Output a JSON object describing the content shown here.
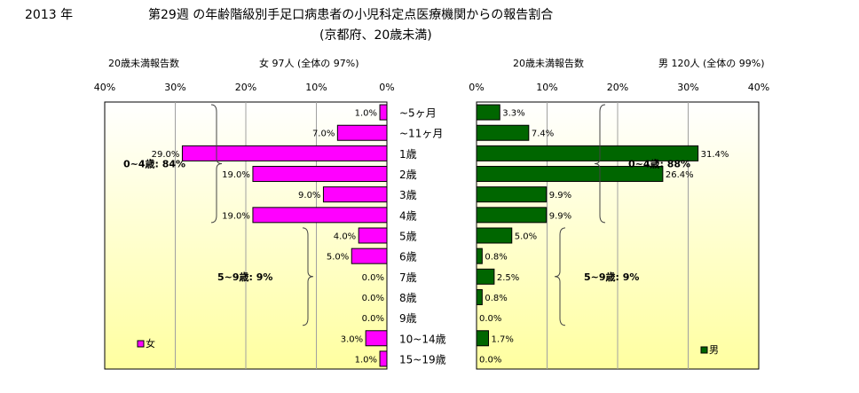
{
  "header": {
    "year": "2013 年",
    "title_line1": "第29週 の年齢階級別手足口病患者の小児科定点医療機関からの報告割合",
    "title_line2": "(京都府、20歳未満)"
  },
  "colors": {
    "female": "#ff00ff",
    "male": "#006600",
    "plot_bg_top": "#ffffff",
    "plot_bg_bottom": "#ffffa0"
  },
  "chart_data": [
    {
      "type": "bar",
      "orientation": "horizontal",
      "direction": "right-to-left",
      "subtitle": "20歳未満報告数",
      "total_label": "女 97人 (全体の 97%)",
      "legend": "女",
      "legend_position": "bottom-left",
      "xlim": [
        0,
        40
      ],
      "x_ticks": [
        "40%",
        "30%",
        "20%",
        "10%",
        "0%"
      ],
      "categories": [
        "~5ヶ月",
        "~11ヶ月",
        "1歳",
        "2歳",
        "3歳",
        "4歳",
        "5歳",
        "6歳",
        "7歳",
        "8歳",
        "9歳",
        "10~14歳",
        "15~19歳"
      ],
      "values": [
        1.0,
        7.0,
        29.0,
        19.0,
        9.0,
        19.0,
        4.0,
        5.0,
        0.0,
        0.0,
        0.0,
        3.0,
        1.0
      ],
      "value_labels": [
        "1.0%",
        "7.0%",
        "29.0%",
        "19.0%",
        "9.0%",
        "19.0%",
        "4.0%",
        "5.0%",
        "0.0%",
        "0.0%",
        "0.0%",
        "3.0%",
        "1.0%"
      ],
      "group_annotations": [
        {
          "label": "0~4歳: 84%",
          "from": 0,
          "to": 5
        },
        {
          "label": "5~9歳: 9%",
          "from": 6,
          "to": 10
        }
      ],
      "grid": true
    },
    {
      "type": "bar",
      "orientation": "horizontal",
      "direction": "left-to-right",
      "subtitle": "20歳未満報告数",
      "total_label": "男 120人 (全体の 99%)",
      "legend": "男",
      "legend_position": "bottom-right",
      "xlim": [
        0,
        40
      ],
      "x_ticks": [
        "0%",
        "10%",
        "20%",
        "30%",
        "40%"
      ],
      "categories": [
        "~5ヶ月",
        "~11ヶ月",
        "1歳",
        "2歳",
        "3歳",
        "4歳",
        "5歳",
        "6歳",
        "7歳",
        "8歳",
        "9歳",
        "10~14歳",
        "15~19歳"
      ],
      "values": [
        3.3,
        7.4,
        31.4,
        26.4,
        9.9,
        9.9,
        5.0,
        0.8,
        2.5,
        0.8,
        0.0,
        1.7,
        0.0
      ],
      "value_labels": [
        "3.3%",
        "7.4%",
        "31.4%",
        "26.4%",
        "9.9%",
        "9.9%",
        "5.0%",
        "0.8%",
        "2.5%",
        "0.8%",
        "0.0%",
        "1.7%",
        "0.0%"
      ],
      "group_annotations": [
        {
          "label": "0~4歳: 88%",
          "from": 0,
          "to": 5
        },
        {
          "label": "5~9歳: 9%",
          "from": 6,
          "to": 10
        }
      ],
      "grid": true
    }
  ]
}
